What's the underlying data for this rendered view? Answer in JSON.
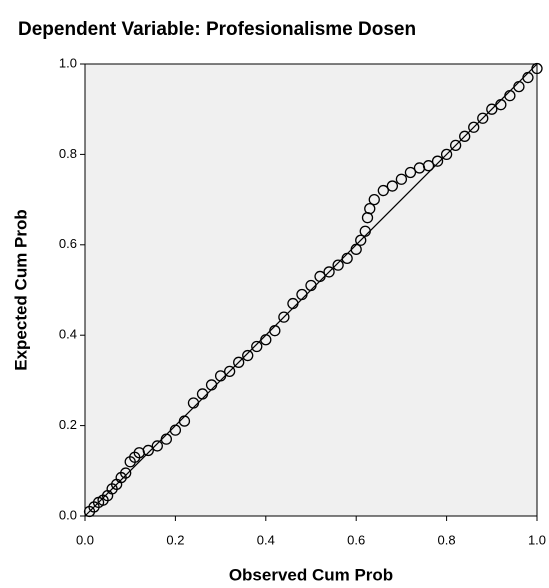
{
  "chart_data": {
    "type": "scatter",
    "title": "Dependent Variable: Profesionalisme Dosen",
    "x_label": "Observed Cum Prob",
    "y_label": "Expected Cum Prob",
    "xlim": [
      0,
      1
    ],
    "ylim": [
      0,
      1
    ],
    "xticks": [
      {
        "value": 0,
        "label": "0.0"
      },
      0.2,
      0.4,
      0.6,
      0.8,
      {
        "value": 1,
        "label": "1.0"
      }
    ],
    "yticks": [
      {
        "value": 0,
        "label": "0.0"
      },
      0.2,
      0.4,
      0.6,
      0.8,
      {
        "value": 1,
        "label": "1.0"
      }
    ],
    "color": "#000000",
    "background": "#f0f0f0",
    "reference_line": true,
    "x": [
      0.01,
      0.02,
      0.03,
      0.04,
      0.05,
      0.06,
      0.07,
      0.08,
      0.09,
      0.1,
      0.11,
      0.12,
      0.14,
      0.16,
      0.18,
      0.2,
      0.22,
      0.24,
      0.26,
      0.28,
      0.3,
      0.32,
      0.34,
      0.36,
      0.38,
      0.4,
      0.42,
      0.44,
      0.46,
      0.48,
      0.5,
      0.52,
      0.54,
      0.56,
      0.58,
      0.6,
      0.61,
      0.62,
      0.625,
      0.63,
      0.64,
      0.66,
      0.68,
      0.7,
      0.72,
      0.74,
      0.76,
      0.78,
      0.8,
      0.82,
      0.84,
      0.86,
      0.88,
      0.9,
      0.92,
      0.94,
      0.96,
      0.98,
      1.0
    ],
    "values": [
      0.01,
      0.02,
      0.03,
      0.035,
      0.045,
      0.06,
      0.07,
      0.085,
      0.095,
      0.12,
      0.13,
      0.14,
      0.145,
      0.155,
      0.17,
      0.19,
      0.21,
      0.25,
      0.27,
      0.29,
      0.31,
      0.32,
      0.34,
      0.355,
      0.375,
      0.39,
      0.41,
      0.44,
      0.47,
      0.49,
      0.51,
      0.53,
      0.54,
      0.555,
      0.57,
      0.59,
      0.61,
      0.63,
      0.66,
      0.68,
      0.7,
      0.72,
      0.73,
      0.745,
      0.76,
      0.77,
      0.775,
      0.785,
      0.8,
      0.82,
      0.84,
      0.86,
      0.88,
      0.9,
      0.91,
      0.93,
      0.95,
      0.97,
      0.99
    ]
  }
}
